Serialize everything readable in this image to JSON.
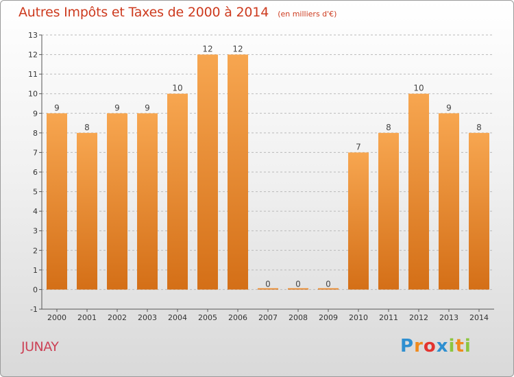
{
  "header": {
    "title": "Autres Impôts et Taxes de 2000 à 2014",
    "subtitle": "(en milliers d'€)"
  },
  "footer": {
    "commune": "JUNAY",
    "logo_letters": [
      "P",
      "r",
      "o",
      "x",
      "i",
      "t",
      "i"
    ],
    "logo_colors": [
      "#2f8fd0",
      "#f08a1c",
      "#e3342f",
      "#2f8fd0",
      "#8cc63f",
      "#f08a1c",
      "#8cc63f"
    ]
  },
  "colors": {
    "title": "#cd3a1e",
    "commune": "#cc4256",
    "bar_light": "#f7a650",
    "bar_dark": "#d46f17",
    "grid": "#b9b9b9"
  },
  "chart_data": {
    "type": "bar",
    "title": "Autres Impôts et Taxes de 2000 à 2014",
    "subtitle": "(en milliers d'€)",
    "categories": [
      "2000",
      "2001",
      "2002",
      "2003",
      "2004",
      "2005",
      "2006",
      "2007",
      "2008",
      "2009",
      "2010",
      "2011",
      "2012",
      "2013",
      "2014"
    ],
    "values": [
      9,
      8,
      9,
      9,
      10,
      12,
      12,
      0,
      0,
      0,
      7,
      8,
      10,
      9,
      8
    ],
    "ylim": [
      -1,
      13
    ],
    "yticks": [
      -1,
      0,
      1,
      2,
      3,
      4,
      5,
      6,
      7,
      8,
      9,
      10,
      11,
      12,
      13
    ],
    "grid": true,
    "xlabel": "",
    "ylabel": ""
  }
}
